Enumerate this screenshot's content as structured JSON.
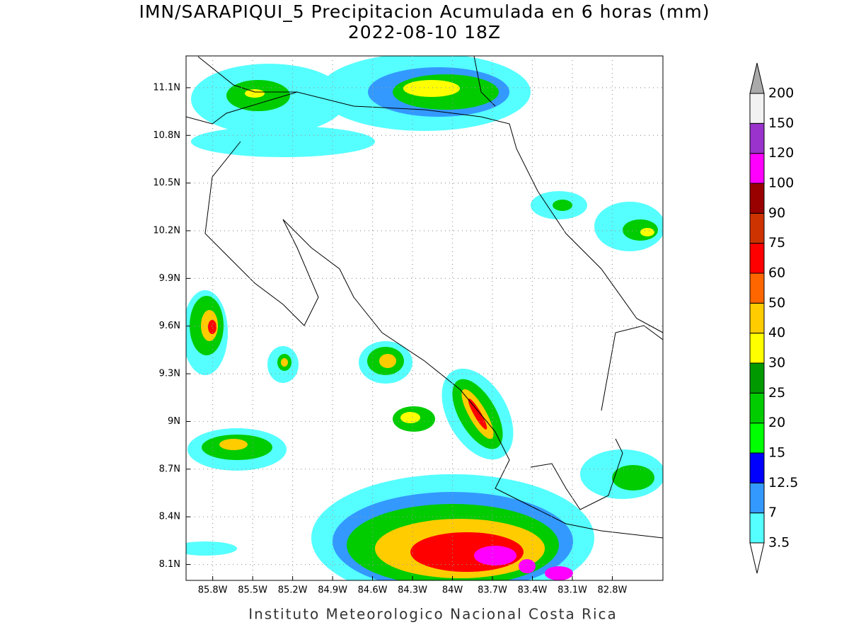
{
  "header": {
    "title": "IMN/SARAPIQUI_5 Precipitacion Acumulada en 6 horas (mm)",
    "subtitle": "2022-08-10 18Z"
  },
  "map": {
    "lonlim": [
      -86.0,
      -82.42
    ],
    "latlim": [
      8.0,
      11.3
    ],
    "lon_ticks": [
      {
        "value": -85.8,
        "label": "85.8W"
      },
      {
        "value": -85.5,
        "label": "85.5W"
      },
      {
        "value": -85.2,
        "label": "85.2W"
      },
      {
        "value": -84.9,
        "label": "84.9W"
      },
      {
        "value": -84.6,
        "label": "84.6W"
      },
      {
        "value": -84.3,
        "label": "84.3W"
      },
      {
        "value": -84.0,
        "label": "84W"
      },
      {
        "value": -83.7,
        "label": "83.7W"
      },
      {
        "value": -83.4,
        "label": "83.4W"
      },
      {
        "value": -83.1,
        "label": "83.1W"
      },
      {
        "value": -82.8,
        "label": "82.8W"
      }
    ],
    "lat_ticks": [
      {
        "value": 8.1,
        "label": "8.1N"
      },
      {
        "value": 8.4,
        "label": "8.4N"
      },
      {
        "value": 8.7,
        "label": "8.7N"
      },
      {
        "value": 9.0,
        "label": "9N"
      },
      {
        "value": 9.3,
        "label": "9.3N"
      },
      {
        "value": 9.6,
        "label": "9.6N"
      },
      {
        "value": 9.9,
        "label": "9.9N"
      },
      {
        "value": 10.2,
        "label": "10.2N"
      },
      {
        "value": 10.5,
        "label": "10.5N"
      },
      {
        "value": 10.8,
        "label": "10.8N"
      },
      {
        "value": 11.1,
        "label": "11.1N"
      }
    ]
  },
  "legend": {
    "levels": [
      3.5,
      7,
      12.5,
      15,
      20,
      25,
      30,
      40,
      50,
      60,
      75,
      90,
      100,
      120,
      150,
      200
    ],
    "colors": [
      "#55ffff",
      "#3399ff",
      "#0000ff",
      "#00ff00",
      "#00cc00",
      "#009900",
      "#ffff00",
      "#ffcc00",
      "#ff6600",
      "#ff0000",
      "#cc3300",
      "#990000",
      "#ff00ff",
      "#9933cc",
      "#f2f2f2"
    ],
    "below_color": "#ffffff",
    "above_color": "#aaaaaa"
  },
  "footer": "Instituto Meteorologico Nacional Costa Rica"
}
